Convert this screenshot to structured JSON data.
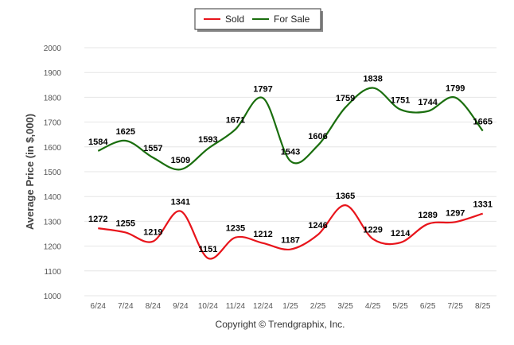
{
  "chart_data": {
    "type": "line",
    "ylabel": "Average Price (in $,000)",
    "xlabel": "",
    "ylim": [
      1000,
      2000
    ],
    "yticks": [
      1000,
      1100,
      1200,
      1300,
      1400,
      1500,
      1600,
      1700,
      1800,
      1900,
      2000
    ],
    "grid": true,
    "legend_position": "top-center",
    "categories": [
      "6/24",
      "7/24",
      "8/24",
      "9/24",
      "10/24",
      "11/24",
      "12/24",
      "1/25",
      "2/25",
      "3/25",
      "4/25",
      "5/25",
      "6/25",
      "7/25",
      "8/25"
    ],
    "series": [
      {
        "name": "Sold",
        "color": "#e8141b",
        "values": [
          1272,
          1255,
          1219,
          1341,
          1151,
          1235,
          1212,
          1187,
          1246,
          1365,
          1229,
          1214,
          1289,
          1297,
          1331
        ]
      },
      {
        "name": "For Sale",
        "color": "#1a6e0e",
        "values": [
          1584,
          1625,
          1557,
          1509,
          1593,
          1671,
          1797,
          1543,
          1606,
          1759,
          1838,
          1751,
          1744,
          1799,
          1665
        ]
      }
    ]
  },
  "copyright": "Copyright © Trendgraphix, Inc."
}
